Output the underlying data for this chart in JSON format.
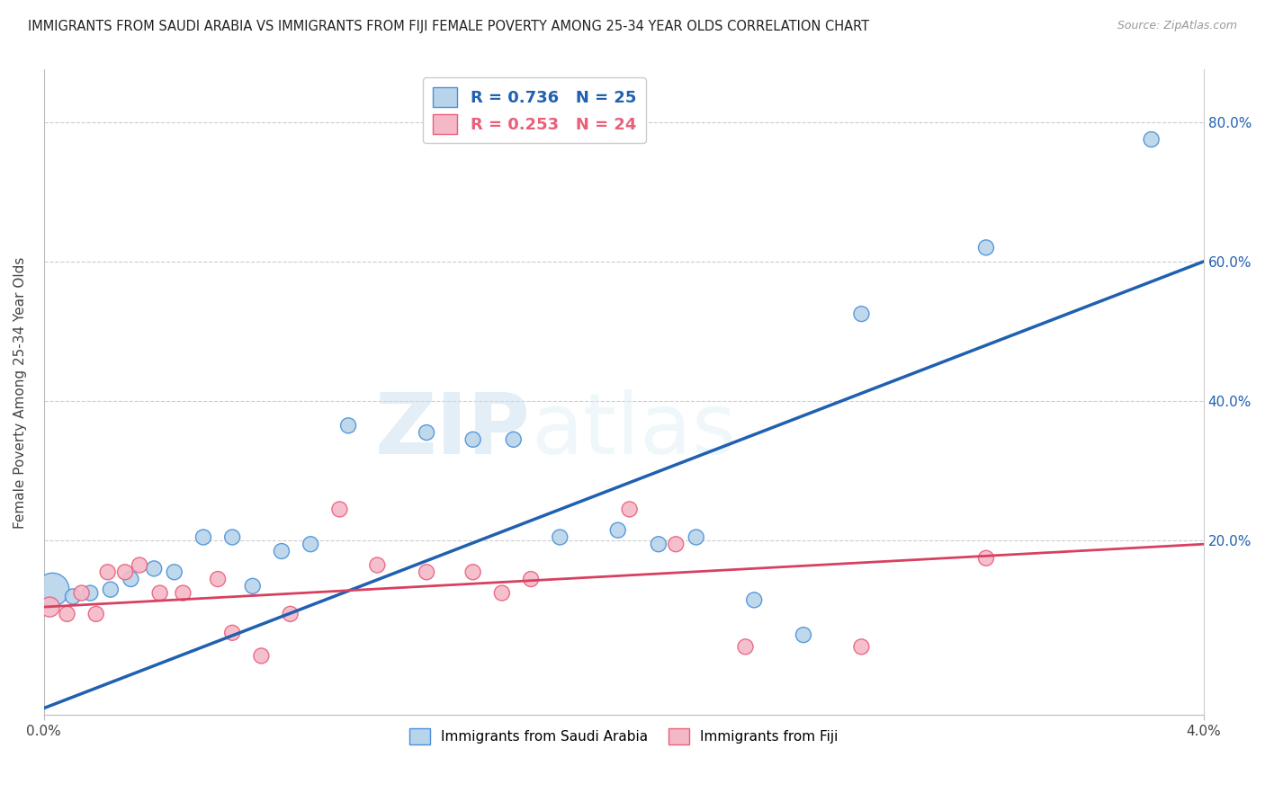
{
  "title": "IMMIGRANTS FROM SAUDI ARABIA VS IMMIGRANTS FROM FIJI FEMALE POVERTY AMONG 25-34 YEAR OLDS CORRELATION CHART",
  "source": "Source: ZipAtlas.com",
  "ylabel": "Female Poverty Among 25-34 Year Olds",
  "xlim": [
    0.0,
    0.04
  ],
  "ylim": [
    -0.05,
    0.875
  ],
  "xtick_positions": [
    0.0,
    0.04
  ],
  "xtick_labels": [
    "0.0%",
    "4.0%"
  ],
  "right_ytick_positions": [
    0.2,
    0.4,
    0.6,
    0.8
  ],
  "right_ytick_labels": [
    "20.0%",
    "40.0%",
    "60.0%",
    "80.0%"
  ],
  "saudi_R": 0.736,
  "saudi_N": 25,
  "fiji_R": 0.253,
  "fiji_N": 24,
  "saudi_color": "#b8d4ea",
  "fiji_color": "#f5b8c8",
  "saudi_edge_color": "#4a90d9",
  "fiji_edge_color": "#e8607a",
  "saudi_line_color": "#2060b0",
  "fiji_line_color": "#d84060",
  "watermark_zip": "ZIP",
  "watermark_atlas": "atlas",
  "saudi_data": [
    [
      0.0003,
      0.13
    ],
    [
      0.001,
      0.12
    ],
    [
      0.0016,
      0.125
    ],
    [
      0.0023,
      0.13
    ],
    [
      0.003,
      0.145
    ],
    [
      0.0038,
      0.16
    ],
    [
      0.0045,
      0.155
    ],
    [
      0.0055,
      0.205
    ],
    [
      0.0065,
      0.205
    ],
    [
      0.0072,
      0.135
    ],
    [
      0.0082,
      0.185
    ],
    [
      0.0092,
      0.195
    ],
    [
      0.0105,
      0.365
    ],
    [
      0.0132,
      0.355
    ],
    [
      0.0148,
      0.345
    ],
    [
      0.0162,
      0.345
    ],
    [
      0.0178,
      0.205
    ],
    [
      0.0198,
      0.215
    ],
    [
      0.0212,
      0.195
    ],
    [
      0.0225,
      0.205
    ],
    [
      0.0245,
      0.115
    ],
    [
      0.0262,
      0.065
    ],
    [
      0.0282,
      0.525
    ],
    [
      0.0325,
      0.62
    ],
    [
      0.0382,
      0.775
    ]
  ],
  "fiji_data": [
    [
      0.0002,
      0.105
    ],
    [
      0.0008,
      0.095
    ],
    [
      0.0013,
      0.125
    ],
    [
      0.0018,
      0.095
    ],
    [
      0.0022,
      0.155
    ],
    [
      0.0028,
      0.155
    ],
    [
      0.0033,
      0.165
    ],
    [
      0.004,
      0.125
    ],
    [
      0.0048,
      0.125
    ],
    [
      0.006,
      0.145
    ],
    [
      0.0065,
      0.068
    ],
    [
      0.0075,
      0.035
    ],
    [
      0.0085,
      0.095
    ],
    [
      0.0102,
      0.245
    ],
    [
      0.0115,
      0.165
    ],
    [
      0.0132,
      0.155
    ],
    [
      0.0148,
      0.155
    ],
    [
      0.0158,
      0.125
    ],
    [
      0.0168,
      0.145
    ],
    [
      0.0202,
      0.245
    ],
    [
      0.0218,
      0.195
    ],
    [
      0.0242,
      0.048
    ],
    [
      0.0282,
      0.048
    ],
    [
      0.0325,
      0.175
    ]
  ],
  "saudi_bubble_sizes": [
    700,
    150,
    150,
    150,
    150,
    150,
    150,
    150,
    150,
    150,
    150,
    150,
    150,
    150,
    150,
    150,
    150,
    150,
    150,
    150,
    150,
    150,
    150,
    150,
    150
  ],
  "fiji_bubble_sizes": [
    250,
    150,
    150,
    150,
    150,
    150,
    150,
    150,
    150,
    150,
    150,
    150,
    150,
    150,
    150,
    150,
    150,
    150,
    150,
    150,
    150,
    150,
    150,
    150
  ],
  "saudi_trend_x": [
    0.0,
    0.04
  ],
  "saudi_trend_y": [
    -0.04,
    0.6
  ],
  "fiji_trend_x": [
    0.0,
    0.04
  ],
  "fiji_trend_y": [
    0.105,
    0.195
  ]
}
